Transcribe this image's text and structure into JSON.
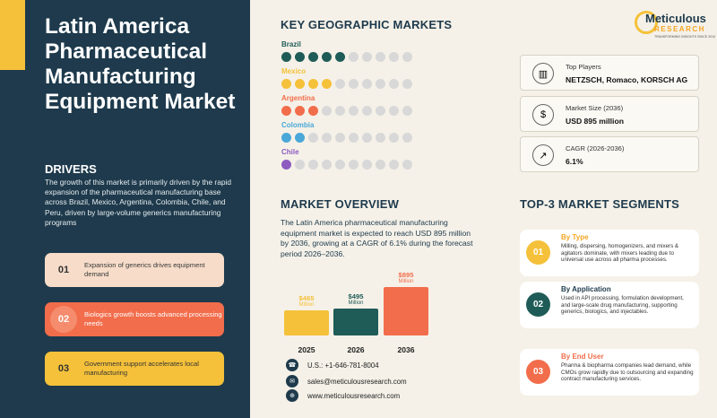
{
  "left": {
    "title": "Latin America Pharmaceutical Manufacturing Equipment Market",
    "drivers_heading": "DRIVERS",
    "drivers_text": "The growth of this market is primarily driven by the rapid expansion of the pharmaceutical manufacturing base across Brazil, Mexico, Argentina, Colombia, Chile, and Peru, driven by large-volume generics manufacturing programs",
    "drivers": [
      {
        "num": "01",
        "text": "Expansion of generics drives equipment demand"
      },
      {
        "num": "02",
        "text": "Biologics growth boosts advanced processing needs"
      },
      {
        "num": "03",
        "text": "Government support accelerates local manufacturing"
      }
    ]
  },
  "geo": {
    "title": "KEY GEOGRAPHIC MARKETS",
    "countries": [
      {
        "name": "Brazil",
        "filled": 5,
        "color": "#1f5c57"
      },
      {
        "name": "Mexico",
        "filled": 4,
        "color": "#f5c13a"
      },
      {
        "name": "Argentina",
        "filled": 3,
        "color": "#f26d4b"
      },
      {
        "name": "Colombia",
        "filled": 2,
        "color": "#4aa8d8"
      },
      {
        "name": "Chile",
        "filled": 1,
        "color": "#8e5bc0"
      }
    ],
    "total_dots": 10
  },
  "logo": {
    "name": "Meticulous",
    "sub": "RESEARCH",
    "tag": "TRANSFORMING INSIGHTS SINCE 2010"
  },
  "stats": [
    {
      "icon": "bar-chart-icon",
      "glyph": "▥",
      "label": "Top Players",
      "value": "NETZSCH, Romaco, KORSCH AG"
    },
    {
      "icon": "money-bag-icon",
      "glyph": "$",
      "label": "Market Size (2036)",
      "value": "USD 895 million"
    },
    {
      "icon": "growth-chart-icon",
      "glyph": "↗",
      "label": "CAGR (2026-2036)",
      "value": "6.1%"
    }
  ],
  "overview": {
    "title": "MARKET OVERVIEW",
    "text": "The Latin America pharmaceutical manufacturing equipment market is expected to reach USD 895 million by 2036, growing at a CAGR of 6.1% during the forecast period 2026–2036."
  },
  "chart_data": {
    "type": "bar",
    "categories": [
      "2025",
      "2026",
      "2036"
    ],
    "values": [
      465,
      495,
      895
    ],
    "value_labels": [
      "$465",
      "$495",
      "$895"
    ],
    "unit": "Million",
    "colors": [
      "#f5c13a",
      "#1f5c57",
      "#f26d4b"
    ],
    "title": "",
    "xlabel": "",
    "ylabel": ""
  },
  "contacts": [
    {
      "icon": "phone-icon",
      "glyph": "☎",
      "text": "U.S.: +1-646-781-8004"
    },
    {
      "icon": "email-icon",
      "glyph": "✉",
      "text": "sales@meticulousresearch.com"
    },
    {
      "icon": "globe-icon",
      "glyph": "⊕",
      "text": "www.meticulousresearch.com"
    }
  ],
  "segments": {
    "title": "TOP-3 MARKET SEGMENTS",
    "items": [
      {
        "num": "01",
        "title": "By Type",
        "color": "#f5c13a",
        "title_color": "#f5a623",
        "text": "Milling, dispersing, homogenizers, and mixers & agitators dominate, with mixers leading due to universal use across all pharma processes."
      },
      {
        "num": "02",
        "title": "By Application",
        "color": "#1f5c57",
        "title_color": "#1e3a4c",
        "text": "Used in API processing, formulation development, and large-scale drug manufacturing, supporting generics, biologics, and injectables."
      },
      {
        "num": "03",
        "title": "By End User",
        "color": "#f26d4b",
        "title_color": "#f26d4b",
        "text": "Pharma & biopharma companies lead demand, while CMOs grow rapidly due to outsourcing and expanding contract manufacturing services."
      }
    ]
  }
}
